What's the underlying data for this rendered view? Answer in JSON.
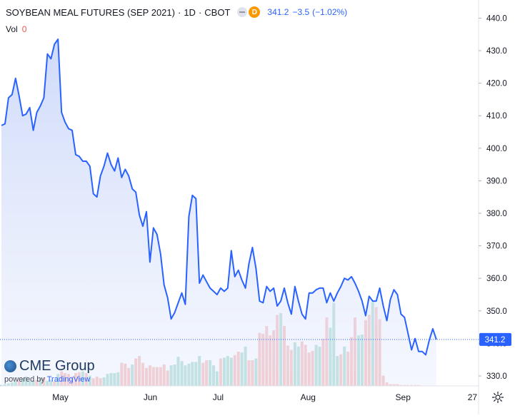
{
  "header": {
    "symbol": "SOYBEAN MEAL FUTURES (SEP 2021)",
    "sep1": "·",
    "interval": "1D",
    "sep2": "·",
    "exchange": "CBOT",
    "status_badge": "D",
    "last": "341.2",
    "change": "−3.5",
    "change_pct": "(−1.02%)"
  },
  "volume_label": {
    "label": "Vol",
    "value": "0"
  },
  "watermark": {
    "brand": "CME Group",
    "powered_prefix": "powered by ",
    "powered_brand": "TradingView"
  },
  "colors": {
    "line": "#2962ff",
    "area": "#dde5fb",
    "vol_up": "#7ec8b8",
    "vol_down": "#f29a9a",
    "price_label_bg": "#2962ff",
    "watermark_blue": "#1f3a60"
  },
  "icons": {
    "settings": "gear-icon",
    "globe": "globe-icon"
  },
  "chart_data": {
    "type": "line",
    "xlabel": "",
    "ylabel": "",
    "ylim": [
      325,
      443
    ],
    "y_ticks": [
      330.0,
      340.0,
      350.0,
      360.0,
      370.0,
      380.0,
      390.0,
      400.0,
      410.0,
      420.0,
      430.0,
      440.0
    ],
    "y_tick_labels": [
      "330.0",
      "340.0",
      "350.0",
      "360.0",
      "370.0",
      "380.0",
      "390.0",
      "400.0",
      "410.0",
      "420.0",
      "430.0",
      "440.0"
    ],
    "x_ticks": [
      {
        "label": "May",
        "index": 8
      },
      {
        "label": "Jun",
        "index": 30
      },
      {
        "label": "Jul",
        "index": 52
      },
      {
        "label": "Aug",
        "index": 74
      },
      {
        "label": "Sep",
        "index": 96
      },
      {
        "label": "27",
        "index": 112
      }
    ],
    "last_price": 341.2,
    "last_price_label": "341.2",
    "series": [
      {
        "values": [
          407,
          407.5,
          415.5,
          416.5,
          421.5,
          416,
          410,
          410.5,
          412.5,
          405.5,
          411,
          413,
          415.5,
          429,
          427.5,
          432,
          433.5,
          411,
          408,
          406,
          405.5,
          398,
          397.5,
          396,
          396,
          394.5,
          386,
          385,
          391.5,
          394.5,
          398.5,
          395,
          393,
          397,
          391,
          393.5,
          391.5,
          387.5,
          386.5,
          379.5,
          376,
          380.5,
          365,
          375.5,
          373.5,
          367.5,
          358,
          354,
          347.5,
          349.5,
          352.5,
          355.5,
          352,
          379,
          385.5,
          384.5,
          358.5,
          361,
          359,
          357,
          356,
          355,
          357,
          356,
          357,
          368.5,
          360.5,
          362.5,
          359.5,
          357,
          364.5,
          369.5,
          363,
          353,
          352.5,
          357.5,
          356,
          357,
          351.5,
          353,
          357,
          352.5,
          349,
          357.5,
          353,
          349,
          347.5,
          355.5,
          355.5,
          356.5,
          357,
          357,
          352.5,
          355.5,
          353,
          355.5,
          357.5,
          360,
          359.5,
          360.5,
          358.5,
          356,
          353,
          348.5,
          354.5,
          353,
          353,
          357,
          351.5,
          347,
          353.5,
          356.5,
          355,
          349,
          348,
          343,
          338,
          341.5,
          337.5,
          337.5,
          336.5,
          341,
          344.5,
          341.2
        ]
      }
    ],
    "volume": [
      {
        "v": 1,
        "up": true
      },
      {
        "v": 2,
        "up": true
      },
      {
        "v": 3,
        "up": true
      },
      {
        "v": 4,
        "up": true
      },
      {
        "v": 5,
        "up": true
      },
      {
        "v": 6,
        "up": false
      },
      {
        "v": 9,
        "up": true
      },
      {
        "v": 11,
        "up": true
      },
      {
        "v": 5,
        "up": true
      },
      {
        "v": 6,
        "up": true
      },
      {
        "v": 7,
        "up": false
      },
      {
        "v": 9,
        "up": true
      },
      {
        "v": 10,
        "up": false
      },
      {
        "v": 6,
        "up": true
      },
      {
        "v": 7,
        "up": true
      },
      {
        "v": 5,
        "up": false
      },
      {
        "v": 14,
        "up": true
      },
      {
        "v": 17,
        "up": false
      },
      {
        "v": 15,
        "up": false
      },
      {
        "v": 14,
        "up": false
      },
      {
        "v": 11,
        "up": false
      },
      {
        "v": 15,
        "up": false
      },
      {
        "v": 16,
        "up": false
      },
      {
        "v": 17,
        "up": true
      },
      {
        "v": 15,
        "up": false
      },
      {
        "v": 12,
        "up": true
      },
      {
        "v": 9,
        "up": false
      },
      {
        "v": 11,
        "up": false
      },
      {
        "v": 9,
        "up": false
      },
      {
        "v": 10,
        "up": true
      },
      {
        "v": 14,
        "up": true
      },
      {
        "v": 15,
        "up": true
      },
      {
        "v": 15,
        "up": true
      },
      {
        "v": 16,
        "up": true
      },
      {
        "v": 27,
        "up": false
      },
      {
        "v": 26,
        "up": false
      },
      {
        "v": 21,
        "up": false
      },
      {
        "v": 25,
        "up": true
      },
      {
        "v": 32,
        "up": false
      },
      {
        "v": 35,
        "up": false
      },
      {
        "v": 27,
        "up": false
      },
      {
        "v": 21,
        "up": false
      },
      {
        "v": 24,
        "up": false
      },
      {
        "v": 22,
        "up": false
      },
      {
        "v": 22,
        "up": false
      },
      {
        "v": 22,
        "up": false
      },
      {
        "v": 25,
        "up": false
      },
      {
        "v": 18,
        "up": false
      },
      {
        "v": 24,
        "up": true
      },
      {
        "v": 25,
        "up": true
      },
      {
        "v": 34,
        "up": true
      },
      {
        "v": 29,
        "up": true
      },
      {
        "v": 24,
        "up": true
      },
      {
        "v": 26,
        "up": true
      },
      {
        "v": 28,
        "up": true
      },
      {
        "v": 28,
        "up": true
      },
      {
        "v": 35,
        "up": true
      },
      {
        "v": 27,
        "up": false
      },
      {
        "v": 30,
        "up": false
      },
      {
        "v": 30,
        "up": true
      },
      {
        "v": 24,
        "up": true
      },
      {
        "v": 17,
        "up": true
      },
      {
        "v": 32,
        "up": false
      },
      {
        "v": 33,
        "up": true
      },
      {
        "v": 35,
        "up": true
      },
      {
        "v": 33,
        "up": true
      },
      {
        "v": 36,
        "up": false
      },
      {
        "v": 40,
        "up": false
      },
      {
        "v": 39,
        "up": true
      },
      {
        "v": 46,
        "up": true
      },
      {
        "v": 30,
        "up": false
      },
      {
        "v": 30,
        "up": false
      },
      {
        "v": 32,
        "up": true
      },
      {
        "v": 62,
        "up": false
      },
      {
        "v": 61,
        "up": false
      },
      {
        "v": 70,
        "up": false
      },
      {
        "v": 59,
        "up": false
      },
      {
        "v": 65,
        "up": false
      },
      {
        "v": 83,
        "up": false
      },
      {
        "v": 85,
        "up": true
      },
      {
        "v": 70,
        "up": false
      },
      {
        "v": 47,
        "up": false
      },
      {
        "v": 42,
        "up": false
      },
      {
        "v": 51,
        "up": true
      },
      {
        "v": 46,
        "up": true
      },
      {
        "v": 52,
        "up": false
      },
      {
        "v": 48,
        "up": false
      },
      {
        "v": 39,
        "up": false
      },
      {
        "v": 41,
        "up": false
      },
      {
        "v": 48,
        "up": true
      },
      {
        "v": 46,
        "up": true
      },
      {
        "v": 55,
        "up": false
      },
      {
        "v": 80,
        "up": false
      },
      {
        "v": 68,
        "up": true
      },
      {
        "v": 97,
        "up": true
      },
      {
        "v": 35,
        "up": true
      },
      {
        "v": 37,
        "up": false
      },
      {
        "v": 46,
        "up": true
      },
      {
        "v": 40,
        "up": false
      },
      {
        "v": 57,
        "up": false
      },
      {
        "v": 80,
        "up": false
      },
      {
        "v": 59,
        "up": true
      },
      {
        "v": 60,
        "up": true
      },
      {
        "v": 77,
        "up": false
      },
      {
        "v": 83,
        "up": false
      },
      {
        "v": 98,
        "up": true
      },
      {
        "v": 92,
        "up": false
      },
      {
        "v": 78,
        "up": false
      },
      {
        "v": 12,
        "up": false
      },
      {
        "v": 4,
        "up": false
      },
      {
        "v": 2,
        "up": false
      },
      {
        "v": 2,
        "up": false
      },
      {
        "v": 2,
        "up": false
      },
      {
        "v": 1,
        "up": false
      },
      {
        "v": 1,
        "up": false
      },
      {
        "v": 1,
        "up": false
      },
      {
        "v": 1,
        "up": false
      },
      {
        "v": 1,
        "up": false
      },
      {
        "v": 1,
        "up": false
      }
    ]
  }
}
